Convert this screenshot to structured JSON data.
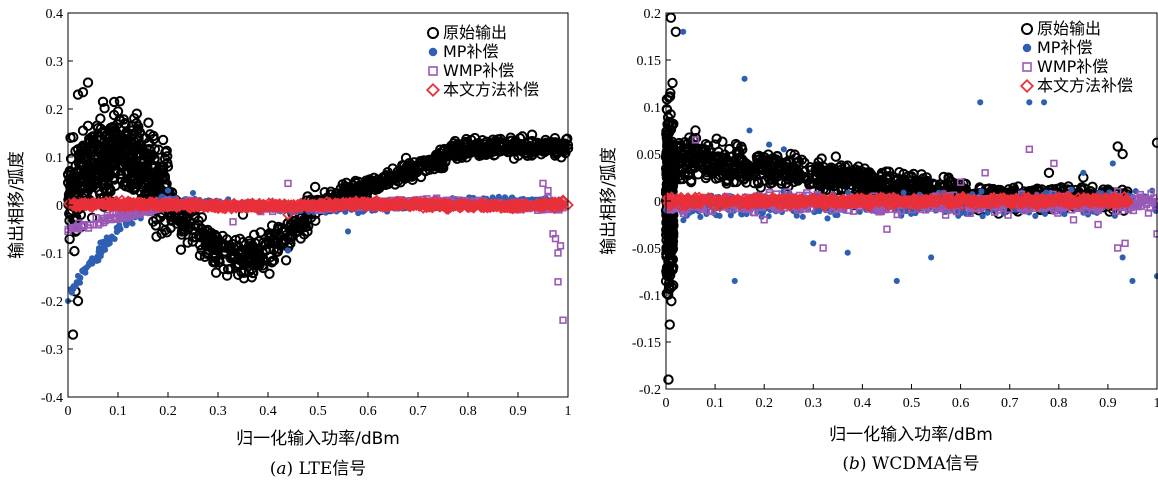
{
  "chart_data": [
    {
      "type": "scatter",
      "caption_letter": "a",
      "caption_text": "LTE信号",
      "xlabel": "归一化输入功率/dBm",
      "ylabel": "输出相移/弧度",
      "xlim": [
        0,
        1
      ],
      "ylim": [
        -0.4,
        0.4
      ],
      "xticks": [
        "0",
        "0.1",
        "0.2",
        "0.3",
        "0.4",
        "0.5",
        "0.6",
        "0.7",
        "0.8",
        "0.9",
        "1"
      ],
      "yticks": [
        "0.4",
        "0.3",
        "0.2",
        "0.1",
        "0",
        "-0.1",
        "-0.2",
        "-0.3",
        "-0.4"
      ],
      "legend_position": "top-right",
      "series": [
        {
          "name": "原始输出",
          "marker": "circle-open",
          "color": "#000000",
          "outliers": [
            [
              0.01,
              -0.27
            ],
            [
              0.02,
              0.23
            ],
            [
              0.03,
              0.235
            ],
            [
              0.04,
              0.255
            ],
            [
              0.07,
              0.215
            ],
            [
              0.1,
              0.195
            ],
            [
              0.12,
              0.15
            ],
            [
              0.04,
              0.165
            ],
            [
              0.06,
              0.16
            ],
            [
              0.015,
              -0.18
            ],
            [
              0.02,
              -0.2
            ],
            [
              0.005,
              0.14
            ],
            [
              0.03,
              0.155
            ],
            [
              0.35,
              -0.02
            ],
            [
              0.42,
              -0.05
            ],
            [
              1.0,
              0.118
            ],
            [
              0.92,
              0.12
            ],
            [
              0.85,
              0.115
            ]
          ]
        },
        {
          "name": "MP补偿",
          "marker": "dot",
          "color": "#2f5fb3",
          "outliers": [
            [
              0.44,
              -0.095
            ],
            [
              0.56,
              -0.055
            ],
            [
              0.2,
              0.03
            ],
            [
              0.25,
              0.025
            ],
            [
              0.95,
              0.005
            ],
            [
              0.0,
              -0.2
            ]
          ]
        },
        {
          "name": "WMP补偿",
          "marker": "square-open",
          "color": "#9b59b6",
          "outliers": [
            [
              0.0,
              -0.055
            ],
            [
              0.33,
              -0.035
            ],
            [
              0.44,
              0.045
            ],
            [
              0.95,
              0.045
            ],
            [
              0.96,
              0.03
            ],
            [
              0.96,
              0.015
            ],
            [
              0.97,
              -0.06
            ],
            [
              0.975,
              -0.07
            ],
            [
              0.98,
              -0.1
            ],
            [
              0.98,
              -0.16
            ],
            [
              0.99,
              -0.24
            ],
            [
              0.985,
              -0.085
            ],
            [
              0.2,
              0.01
            ],
            [
              0.9,
              -0.01
            ]
          ]
        },
        {
          "name": "本文方法补偿",
          "marker": "diamond-open",
          "color": "#e8303a",
          "outliers": [
            [
              0.44,
              -0.02
            ],
            [
              0.99,
              0.01
            ],
            [
              0.95,
              0.005
            ],
            [
              1.0,
              0.0
            ]
          ]
        }
      ]
    },
    {
      "type": "scatter",
      "caption_letter": "b",
      "caption_text": "WCDMA信号",
      "xlabel": "归一化输入功率/dBm",
      "ylabel": "输出相移/弧度",
      "xlim": [
        0,
        1
      ],
      "ylim": [
        -0.2,
        0.2
      ],
      "xticks": [
        "0",
        "0.1",
        "0.2",
        "0.3",
        "0.4",
        "0.5",
        "0.6",
        "0.7",
        "0.8",
        "0.9",
        "1"
      ],
      "yticks": [
        "0.2",
        "0.15",
        "0.1",
        "0.05",
        "0",
        "-0.05",
        "-0.1",
        "-0.15",
        "-0.2"
      ],
      "legend_position": "top-right",
      "series": [
        {
          "name": "原始输出",
          "marker": "circle-open",
          "color": "#000000",
          "outliers": [
            [
              0.01,
              0.195
            ],
            [
              0.005,
              -0.19
            ],
            [
              0.06,
              0.075
            ],
            [
              0.1,
              0.06
            ],
            [
              0.78,
              0.03
            ],
            [
              0.85,
              0.025
            ],
            [
              0.92,
              0.058
            ],
            [
              0.93,
              0.05
            ],
            [
              1.0,
              0.062
            ],
            [
              0.02,
              0.18
            ]
          ]
        },
        {
          "name": "MP补偿",
          "marker": "dot",
          "color": "#2f5fb3",
          "outliers": [
            [
              0.035,
              0.18
            ],
            [
              0.16,
              0.13
            ],
            [
              0.17,
              0.075
            ],
            [
              0.14,
              -0.085
            ],
            [
              0.21,
              0.06
            ],
            [
              0.24,
              0.055
            ],
            [
              0.3,
              -0.045
            ],
            [
              0.37,
              -0.055
            ],
            [
              0.47,
              -0.085
            ],
            [
              0.54,
              -0.06
            ],
            [
              0.64,
              0.105
            ],
            [
              0.74,
              0.105
            ],
            [
              0.77,
              0.105
            ],
            [
              0.93,
              -0.06
            ],
            [
              0.95,
              -0.085
            ],
            [
              1.0,
              -0.08
            ],
            [
              0.91,
              0.04
            ],
            [
              0.85,
              0.03
            ]
          ]
        },
        {
          "name": "WMP补偿",
          "marker": "square-open",
          "color": "#9b59b6",
          "outliers": [
            [
              0.06,
              0.065
            ],
            [
              0.32,
              -0.05
            ],
            [
              0.45,
              -0.03
            ],
            [
              0.74,
              0.055
            ],
            [
              0.79,
              0.04
            ],
            [
              0.83,
              -0.02
            ],
            [
              0.88,
              -0.025
            ],
            [
              0.92,
              -0.05
            ],
            [
              0.935,
              -0.045
            ],
            [
              0.92,
              0.01
            ],
            [
              1.0,
              -0.035
            ],
            [
              0.65,
              0.03
            ],
            [
              0.6,
              0.02
            ],
            [
              0.2,
              -0.02
            ]
          ]
        },
        {
          "name": "本文方法补偿",
          "marker": "diamond-open",
          "color": "#e8303a",
          "outliers": [
            [
              0.82,
              0.005
            ],
            [
              0.87,
              0.003
            ],
            [
              0.9,
              0.0
            ],
            [
              0.92,
              0.002
            ],
            [
              0.93,
              0.0
            ],
            [
              0.94,
              0.0
            ]
          ]
        }
      ]
    }
  ]
}
